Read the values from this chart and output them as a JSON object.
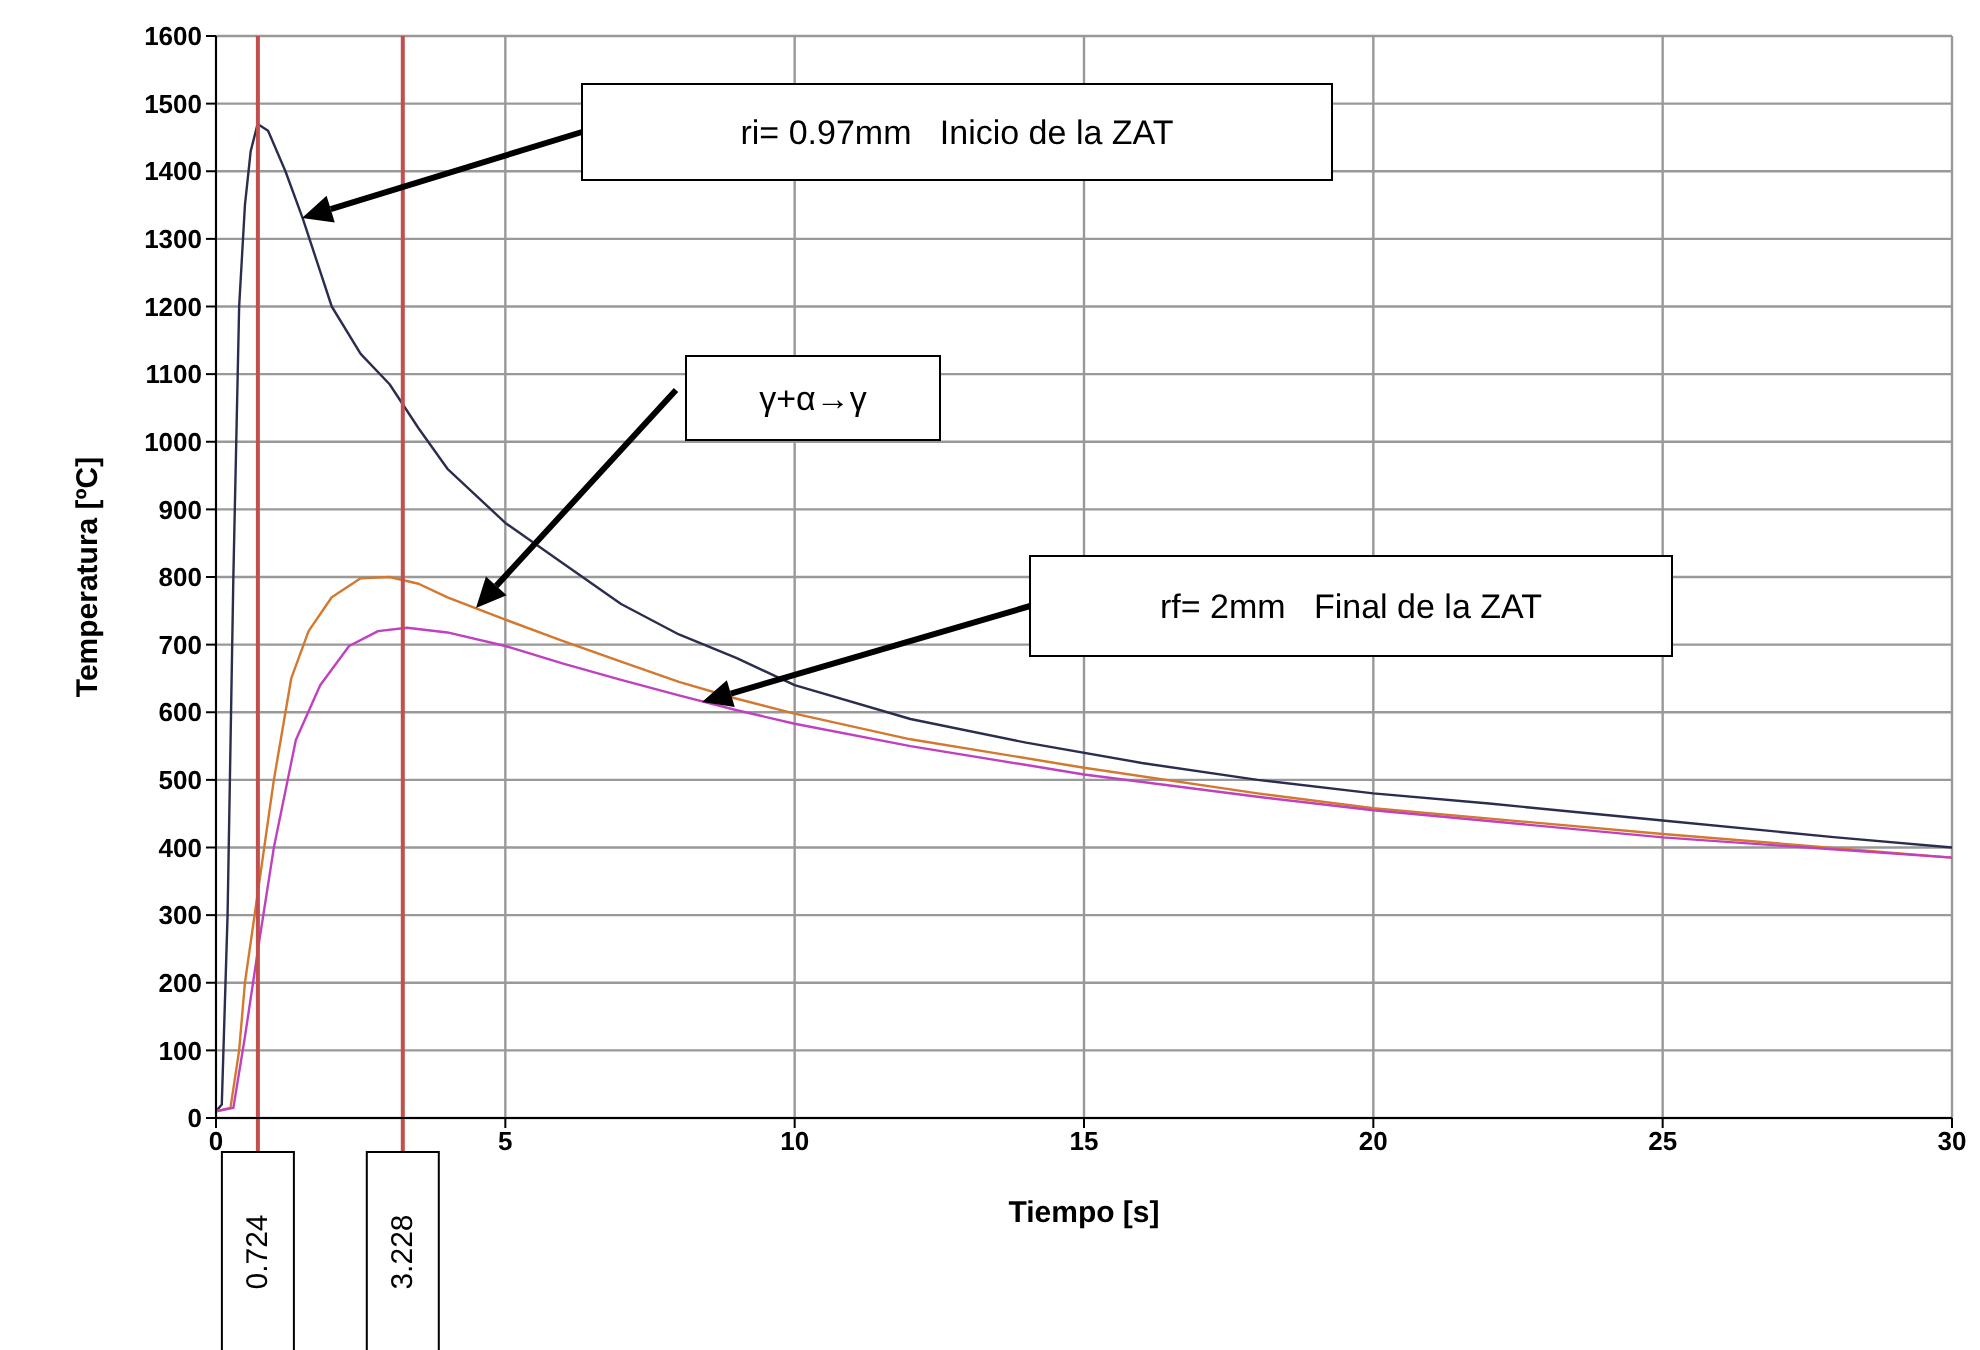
{
  "chart_data": {
    "type": "line",
    "xlabel": "Tiempo [s]",
    "ylabel": "Temperatura [ºC]",
    "xlim": [
      0,
      30
    ],
    "xticks": [
      0,
      5,
      10,
      15,
      20,
      25,
      30
    ],
    "ylim": [
      0,
      1600
    ],
    "yticks": [
      0,
      100,
      200,
      300,
      400,
      500,
      600,
      700,
      800,
      900,
      1000,
      1100,
      1200,
      1300,
      1400,
      1500,
      1600
    ],
    "grid": true,
    "legend": false,
    "marker": "none",
    "line_style": "solid",
    "series": [
      {
        "color": "#2b2d4f",
        "x": [
          0,
          0.1,
          0.2,
          0.3,
          0.4,
          0.5,
          0.6,
          0.72,
          0.9,
          1.2,
          1.5,
          2,
          2.5,
          3,
          3.5,
          4,
          5,
          6,
          7,
          8,
          9,
          10,
          12,
          14,
          16,
          18,
          20,
          22,
          25,
          28,
          30
        ],
        "values": [
          10,
          20,
          300,
          800,
          1200,
          1350,
          1430,
          1470,
          1460,
          1400,
          1330,
          1200,
          1130,
          1085,
          1020,
          960,
          880,
          820,
          760,
          715,
          680,
          640,
          590,
          555,
          525,
          500,
          480,
          465,
          440,
          415,
          400
        ]
      },
      {
        "color": "#d2782f",
        "x": [
          0,
          0.25,
          0.4,
          0.5,
          0.75,
          1,
          1.3,
          1.6,
          2,
          2.5,
          3,
          3.5,
          4,
          5,
          6,
          7,
          8,
          9,
          10,
          12,
          15,
          18,
          20,
          25,
          30
        ],
        "values": [
          10,
          15,
          100,
          200,
          350,
          500,
          650,
          720,
          770,
          798,
          800,
          790,
          770,
          737,
          705,
          675,
          645,
          620,
          598,
          560,
          518,
          480,
          458,
          420,
          385
        ]
      },
      {
        "color": "#c040c0",
        "x": [
          0,
          0.3,
          0.5,
          0.75,
          1,
          1.38,
          1.8,
          2.3,
          2.8,
          3.3,
          4,
          5,
          6,
          7,
          8,
          9,
          10,
          12,
          15,
          18,
          20,
          25,
          30
        ],
        "values": [
          10,
          15,
          120,
          263,
          400,
          559,
          640,
          698,
          720,
          725,
          718,
          698,
          672,
          648,
          625,
          603,
          583,
          550,
          508,
          475,
          455,
          415,
          385
        ]
      }
    ],
    "ref_lines": [
      {
        "axis": "x",
        "value": 0.724,
        "label": "0.724",
        "color": "#c0504d"
      },
      {
        "axis": "x",
        "value": 3.228,
        "label": "3.228",
        "color": "#c0504d"
      }
    ],
    "annotations": [
      "ri= 0.97mm   Inicio de la ZAT",
      "γ+α→γ",
      "rf= 2mm   Final de la ZAT"
    ]
  }
}
